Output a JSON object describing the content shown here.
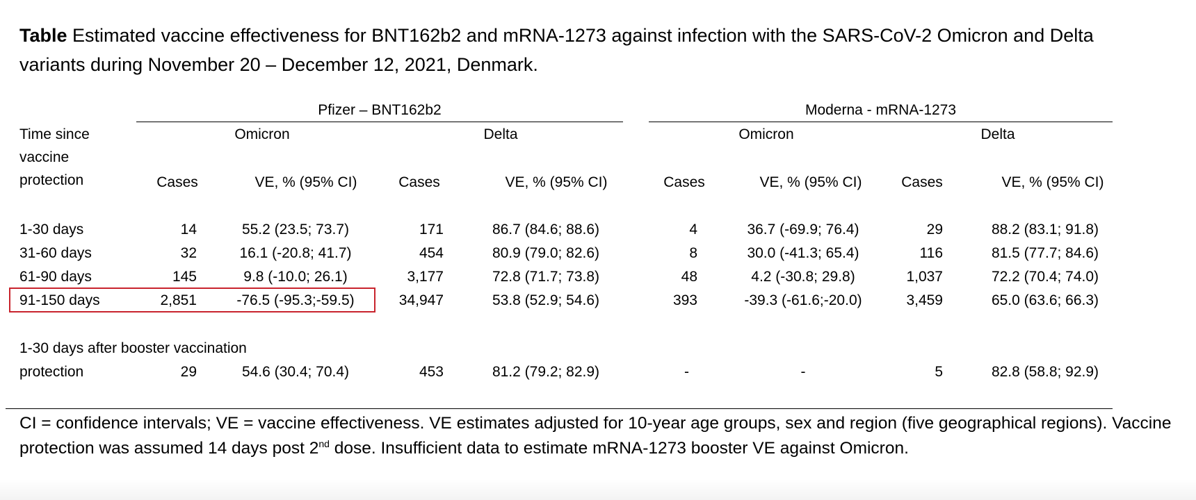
{
  "caption": {
    "label": "Table",
    "text": " Estimated vaccine effectiveness for BNT162b2 and mRNA-1273 against infection with the SARS-CoV-2 Omicron and Delta variants during November 20 – December 12, 2021, Denmark."
  },
  "groups": {
    "pfizer": "Pfizer – BNT162b2",
    "moderna": "Moderna - mRNA-1273"
  },
  "variants": {
    "p_omicron": "Omicron",
    "p_delta": "Delta",
    "m_omicron": "Omicron",
    "m_delta": "Delta"
  },
  "row_header": [
    "Time since",
    "vaccine",
    "protection"
  ],
  "columns": {
    "c1": "Cases",
    "c2": "VE, % (95% CI)",
    "c3": "Cases",
    "c4": "VE, % (95% CI)",
    "c5": "Cases",
    "c6": "VE, % (95% CI)",
    "c7": "Cases",
    "c8": "VE, % (95% CI)"
  },
  "rows": [
    {
      "label": "1-30 days",
      "v": [
        "14",
        "55.2 (23.5; 73.7)",
        "171",
        "86.7 (84.6; 88.6)",
        "4",
        "36.7 (-69.9; 76.4)",
        "29",
        "88.2 (83.1; 91.8)"
      ]
    },
    {
      "label": "31-60 days",
      "v": [
        "32",
        "16.1 (-20.8; 41.7)",
        "454",
        "80.9 (79.0; 82.6)",
        "8",
        "30.0 (-41.3; 65.4)",
        "116",
        "81.5 (77.7; 84.6)"
      ]
    },
    {
      "label": "61-90 days",
      "v": [
        "145",
        "9.8 (-10.0; 26.1)",
        "3,177",
        "72.8 (71.7; 73.8)",
        "48",
        "4.2 (-30.8; 29.8)",
        "1,037",
        "72.2 (70.4; 74.0)"
      ]
    },
    {
      "label": "91-150 days",
      "v": [
        "2,851",
        "-76.5 (-95.3;-59.5)",
        "34,947",
        "53.8 (52.9; 54.6)",
        "393",
        "-39.3 (-61.6;-20.0)",
        "3,459",
        "65.0 (63.6; 66.3)"
      ]
    }
  ],
  "booster": {
    "label_line1": "1-30 days after booster vaccination",
    "label_line2": "protection",
    "v": [
      "29",
      "54.6 (30.4; 70.4)",
      "453",
      "81.2 (79.2; 82.9)",
      "-",
      "-",
      "5",
      "82.8 (58.8; 92.9)"
    ]
  },
  "footnote": {
    "part1": "CI = confidence intervals; VE = vaccine effectiveness. VE estimates adjusted for 10-year age groups, sex and region (five geographical regions). Vaccine protection was assumed 14 days post 2",
    "sup": "nd",
    "part2": " dose. Insufficient data to estimate mRNA-1273 booster VE against Omicron."
  },
  "colors": {
    "highlight_box": "#c8232c"
  }
}
